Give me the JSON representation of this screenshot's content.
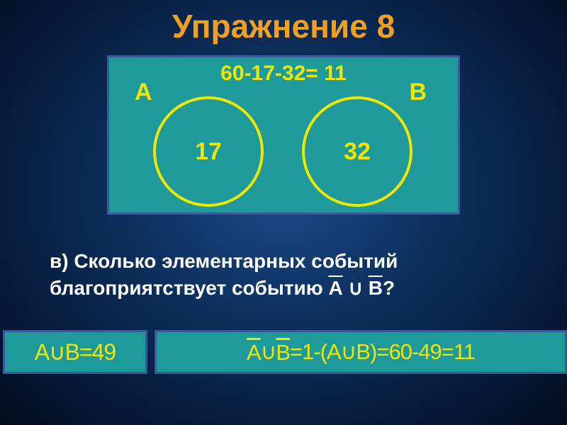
{
  "title": "Упражнение 8",
  "diagram": {
    "calc_top": "60-17-32= 11",
    "label_a": "А",
    "label_b": "В",
    "value_a": "17",
    "value_b": "32",
    "circle_border_color": "#efe700",
    "box_bg": "#1f9a9a",
    "box_border": "#3a5a9a"
  },
  "question": {
    "line1": "в) Сколько элементарных событий",
    "line2_prefix": "благоприятствует событию   ",
    "a_bar": "А",
    "union": " ∪ ",
    "b_bar": "В",
    "suffix": "?"
  },
  "answer1": {
    "text": "А∪В=49"
  },
  "answer2": {
    "a_bar": "А",
    "gap": "  ∪  ",
    "b_bar": "В",
    "rest": "=1-(А∪В)=60-49=11"
  },
  "colors": {
    "title": "#f0a020",
    "accent": "#efe700",
    "text": "#ffffff"
  }
}
